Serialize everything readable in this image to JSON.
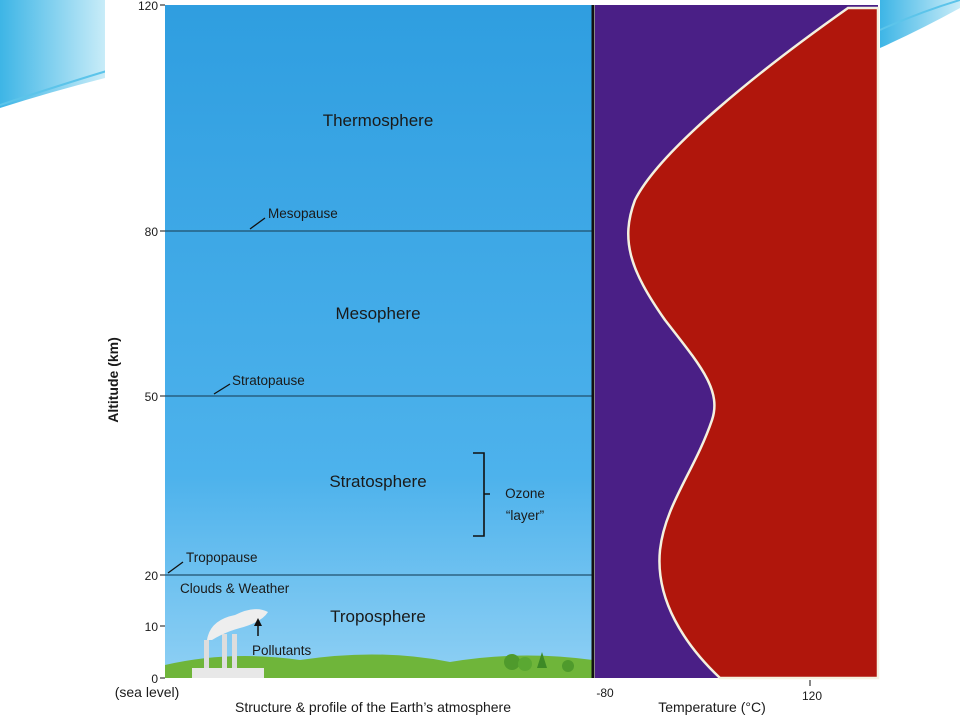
{
  "diagram": {
    "y_axis": {
      "label": "Altitude (km)",
      "ticks": [
        "120",
        "80",
        "50",
        "20",
        "10",
        "0"
      ],
      "baseline_note": "(sea level)"
    },
    "x_axis": {
      "label": "Temperature (°C)",
      "ticks": [
        "-80",
        "120"
      ]
    },
    "caption": "Structure & profile of the Earth’s atmosphere",
    "layers": [
      "Thermosphere",
      "Mesophere",
      "Stratosphere",
      "Troposphere"
    ],
    "boundaries": [
      "Mesopause",
      "Stratopause",
      "Tropopause"
    ],
    "annotations": {
      "ozone": [
        "Ozone",
        "“layer”"
      ],
      "weather": "Clouds & Weather",
      "pollutants": "Pollutants"
    }
  }
}
